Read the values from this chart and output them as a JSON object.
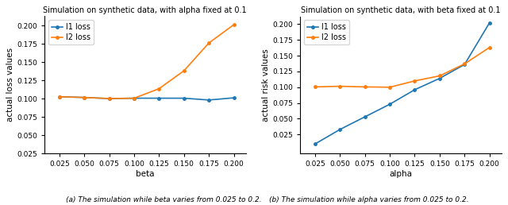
{
  "left_title": "Simulation on synthetic data, with alpha fixed at 0.1",
  "right_title": "Simulation on synthetic data, with beta fixed at 0.1",
  "left_xlabel": "beta",
  "right_xlabel": "alpha",
  "left_ylabel": "actual loss values",
  "right_ylabel": "actual risk values",
  "x_values": [
    0.025,
    0.05,
    0.075,
    0.1,
    0.125,
    0.15,
    0.175,
    0.2
  ],
  "left_l1": [
    0.1025,
    0.1015,
    0.1,
    0.1005,
    0.1005,
    0.1005,
    0.098,
    0.101
  ],
  "left_l2": [
    0.1025,
    0.1015,
    0.1,
    0.1005,
    0.1135,
    0.138,
    0.176,
    0.201
  ],
  "right_l1": [
    0.01,
    0.033,
    0.053,
    0.073,
    0.096,
    0.114,
    0.136,
    0.202
  ],
  "right_l2": [
    0.1005,
    0.1015,
    0.1005,
    0.1,
    0.11,
    0.118,
    0.137,
    0.163
  ],
  "l1_color": "#1f77b4",
  "l2_color": "#ff7f0e",
  "ylim_left": [
    0.025,
    0.2125
  ],
  "ylim_right": [
    -0.005,
    0.2125
  ],
  "yticks_left": [
    0.025,
    0.05,
    0.075,
    0.1,
    0.125,
    0.15,
    0.175,
    0.2
  ],
  "yticks_right": [
    0.025,
    0.05,
    0.075,
    0.1,
    0.125,
    0.15,
    0.175,
    0.2
  ],
  "caption_left": "(a) The simulation while beta varies from 0.025 to 0.2.",
  "caption_right": "(b) The simulation while alpha varies from 0.025 to 0.2.",
  "marker": "o",
  "markersize": 2.5,
  "linewidth": 1.2,
  "title_fontsize": 7.0,
  "label_fontsize": 7.5,
  "tick_fontsize": 6.5,
  "legend_fontsize": 7.0,
  "caption_fontsize": 6.5
}
